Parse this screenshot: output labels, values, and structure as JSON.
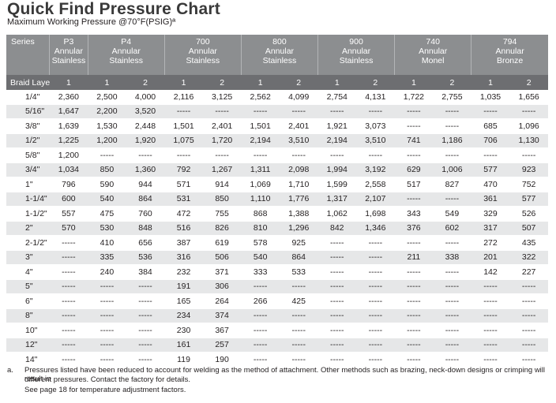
{
  "title": "Quick Find Pressure Chart",
  "subtitle": "Maximum Working Pressure @70°F(PSIG)ª",
  "table": {
    "series_label": "Series",
    "braid_label": "Braid Layers",
    "series": [
      {
        "line1": "P3",
        "line2": "Annular",
        "line3": "Stainless",
        "span": 1
      },
      {
        "line1": "P4",
        "line2": "Annular",
        "line3": "Stainless",
        "span": 2
      },
      {
        "line1": "700",
        "line2": "Annular",
        "line3": "Stainless",
        "span": 2
      },
      {
        "line1": "800",
        "line2": "Annular",
        "line3": "Stainless",
        "span": 2
      },
      {
        "line1": "900",
        "line2": "Annular",
        "line3": "Stainless",
        "span": 2
      },
      {
        "line1": "740",
        "line2": "Annular",
        "line3": "Monel",
        "span": 2
      },
      {
        "line1": "794",
        "line2": "Annular",
        "line3": "Bronze",
        "span": 2
      }
    ],
    "braids": [
      "1",
      "1",
      "2",
      "1",
      "2",
      "1",
      "2",
      "1",
      "2",
      "1",
      "2",
      "1",
      "2"
    ],
    "rows": [
      [
        "1/4\"",
        "2,360",
        "2,500",
        "4,000",
        "2,116",
        "3,125",
        "2,562",
        "4,099",
        "2,754",
        "4,131",
        "1,722",
        "2,755",
        "1,035",
        "1,656"
      ],
      [
        "5/16\"",
        "1,647",
        "2,200",
        "3,520",
        "-----",
        "-----",
        "-----",
        "-----",
        "-----",
        "-----",
        "-----",
        "-----",
        "-----",
        "-----"
      ],
      [
        "3/8\"",
        "1,639",
        "1,530",
        "2,448",
        "1,501",
        "2,401",
        "1,501",
        "2,401",
        "1,921",
        "3,073",
        "-----",
        "-----",
        "685",
        "1,096"
      ],
      [
        "1/2\"",
        "1,225",
        "1,200",
        "1,920",
        "1,075",
        "1,720",
        "2,194",
        "3,510",
        "2,194",
        "3,510",
        "741",
        "1,186",
        "706",
        "1,130"
      ],
      [
        "5/8\"",
        "1,200",
        "-----",
        "-----",
        "-----",
        "-----",
        "-----",
        "-----",
        "-----",
        "-----",
        "-----",
        "-----",
        "-----",
        "-----"
      ],
      [
        "3/4\"",
        "1,034",
        "850",
        "1,360",
        "792",
        "1,267",
        "1,311",
        "2,098",
        "1,994",
        "3,192",
        "629",
        "1,006",
        "577",
        "923"
      ],
      [
        "1\"",
        "796",
        "590",
        "944",
        "571",
        "914",
        "1,069",
        "1,710",
        "1,599",
        "2,558",
        "517",
        "827",
        "470",
        "752"
      ],
      [
        "1-1/4\"",
        "600",
        "540",
        "864",
        "531",
        "850",
        "1,110",
        "1,776",
        "1,317",
        "2,107",
        "-----",
        "-----",
        "361",
        "577"
      ],
      [
        "1-1/2\"",
        "557",
        "475",
        "760",
        "472",
        "755",
        "868",
        "1,388",
        "1,062",
        "1,698",
        "343",
        "549",
        "329",
        "526"
      ],
      [
        "2\"",
        "570",
        "530",
        "848",
        "516",
        "826",
        "810",
        "1,296",
        "842",
        "1,346",
        "376",
        "602",
        "317",
        "507"
      ],
      [
        "2-1/2\"",
        "-----",
        "410",
        "656",
        "387",
        "619",
        "578",
        "925",
        "-----",
        "-----",
        "-----",
        "-----",
        "272",
        "435"
      ],
      [
        "3\"",
        "-----",
        "335",
        "536",
        "316",
        "506",
        "540",
        "864",
        "-----",
        "-----",
        "211",
        "338",
        "201",
        "322"
      ],
      [
        "4\"",
        "-----",
        "240",
        "384",
        "232",
        "371",
        "333",
        "533",
        "-----",
        "-----",
        "-----",
        "-----",
        "142",
        "227"
      ],
      [
        "5\"",
        "-----",
        "-----",
        "-----",
        "191",
        "306",
        "-----",
        "-----",
        "-----",
        "-----",
        "-----",
        "-----",
        "-----",
        "-----"
      ],
      [
        "6\"",
        "-----",
        "-----",
        "-----",
        "165",
        "264",
        "266",
        "425",
        "-----",
        "-----",
        "-----",
        "-----",
        "-----",
        "-----"
      ],
      [
        "8\"",
        "-----",
        "-----",
        "-----",
        "234",
        "374",
        "-----",
        "-----",
        "-----",
        "-----",
        "-----",
        "-----",
        "-----",
        "-----"
      ],
      [
        "10\"",
        "-----",
        "-----",
        "-----",
        "230",
        "367",
        "-----",
        "-----",
        "-----",
        "-----",
        "-----",
        "-----",
        "-----",
        "-----"
      ],
      [
        "12\"",
        "-----",
        "-----",
        "-----",
        "161",
        "257",
        "-----",
        "-----",
        "-----",
        "-----",
        "-----",
        "-----",
        "-----",
        "-----"
      ],
      [
        "14\"",
        "-----",
        "-----",
        "-----",
        "119",
        "190",
        "-----",
        "-----",
        "-----",
        "-----",
        "-----",
        "-----",
        "-----",
        "-----"
      ]
    ]
  },
  "footnote": {
    "marker": "a.",
    "line1": "Pressures listed have been reduced to account for welding as the method of attachment. Other methods such as brazing, neck-down designs or crimping will result in",
    "line2": "different pressures. Contact the factory for details.",
    "line3": "See page 18 for temperature adjustment factors."
  },
  "colors": {
    "header_bg": "#8c8e90",
    "braid_bg": "#6d6e71",
    "stripe": "#e6e7e8"
  }
}
